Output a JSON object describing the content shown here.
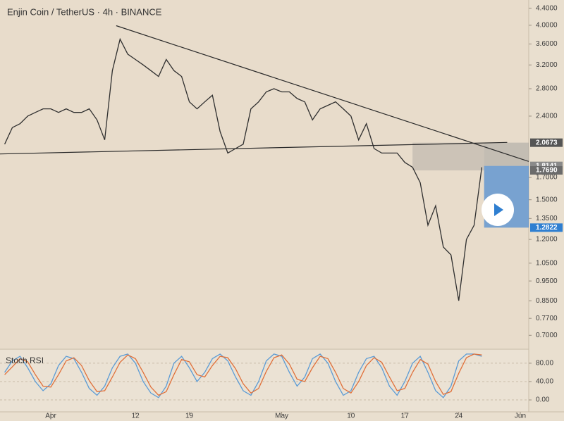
{
  "chart_data": [
    {
      "type": "line",
      "title": "Enjin Coin / TetherUS · 4h · BINANCE",
      "log": true,
      "grid": false,
      "color": "#2f2f2f",
      "x": [
        -6,
        -5,
        -4,
        -3,
        -2,
        -1,
        0,
        1,
        2,
        3,
        4,
        5,
        6,
        7,
        8,
        9,
        10,
        11,
        12,
        13,
        14,
        15,
        16,
        17,
        18,
        19,
        20,
        21,
        22,
        23,
        24,
        25,
        26,
        27,
        28,
        29,
        30,
        31,
        32,
        33,
        34,
        35,
        36,
        37,
        38,
        39,
        40,
        41,
        42,
        43,
        44,
        45,
        46,
        47,
        48,
        49,
        50,
        51,
        52,
        53,
        54,
        55,
        56
      ],
      "values": [
        2.05,
        2.25,
        2.3,
        2.4,
        2.45,
        2.5,
        2.5,
        2.45,
        2.5,
        2.45,
        2.45,
        2.5,
        2.35,
        2.1,
        3.1,
        3.7,
        3.4,
        3.3,
        3.2,
        3.1,
        3.0,
        3.3,
        3.1,
        3.0,
        2.6,
        2.5,
        2.6,
        2.7,
        2.2,
        1.95,
        2.0,
        2.05,
        2.5,
        2.6,
        2.75,
        2.8,
        2.75,
        2.75,
        2.65,
        2.6,
        2.35,
        2.5,
        2.55,
        2.6,
        2.5,
        2.4,
        2.1,
        2.3,
        2.0,
        1.95,
        1.95,
        1.95,
        1.85,
        1.8,
        1.65,
        1.3,
        1.45,
        1.15,
        1.1,
        0.85,
        1.2,
        1.3,
        1.8
      ],
      "xlim": [
        -6.6,
        62.1
      ],
      "xticks": [
        {
          "value": 0,
          "label": "Apr"
        },
        {
          "value": 11,
          "label": "12"
        },
        {
          "value": 18,
          "label": "19"
        },
        {
          "value": 30,
          "label": "May"
        },
        {
          "value": 39,
          "label": "10"
        },
        {
          "value": 46,
          "label": "17"
        },
        {
          "value": 53,
          "label": "24"
        },
        {
          "value": 61,
          "label": "Jun"
        }
      ],
      "ylim": [
        0.65,
        4.61
      ],
      "yticks": [
        {
          "value": 4.4,
          "label": "4.4000"
        },
        {
          "value": 4.0,
          "label": "4.0000"
        },
        {
          "value": 3.6,
          "label": "3.6000"
        },
        {
          "value": 3.2,
          "label": "3.2000"
        },
        {
          "value": 2.8,
          "label": "2.8000"
        },
        {
          "value": 2.4,
          "label": "2.4000"
        },
        {
          "value": 1.7,
          "label": "1.7000"
        },
        {
          "value": 1.5,
          "label": "1.5000"
        },
        {
          "value": 1.35,
          "label": "1.3500"
        },
        {
          "value": 1.2,
          "label": "1.2000"
        },
        {
          "value": 1.05,
          "label": "1.0500"
        },
        {
          "value": 0.95,
          "label": "0.9500"
        },
        {
          "value": 0.85,
          "label": "0.8500"
        },
        {
          "value": 0.77,
          "label": "0.7700"
        },
        {
          "value": 0.7,
          "label": "0.7000"
        }
      ],
      "trendlines": [
        {
          "x": [
            8.5,
            62.1
          ],
          "y": [
            3.99,
            1.86
          ]
        },
        {
          "x": [
            -6.6,
            59.3
          ],
          "y": [
            1.94,
            2.07
          ]
        }
      ],
      "zone": {
        "x": [
          47,
          56.3
        ],
        "y": [
          1.769,
          2.0673
        ]
      },
      "position": {
        "x": [
          56.3,
          62.1
        ],
        "stop": 2.0673,
        "entry": 1.8141,
        "target": 1.2822
      },
      "price_labels": [
        2.0673,
        1.8141,
        {
          "value": 1.769,
          "label": "1.7690"
        },
        1.2822
      ],
      "price_label_colors": [
        "#555555",
        "#8a8a8a",
        "#6b6b6b",
        "#2f7fd1"
      ]
    },
    {
      "type": "line",
      "title": "Stoch RSI",
      "grid": false,
      "x": [
        -6,
        -5,
        -4,
        -3,
        -2,
        -1,
        0,
        1,
        2,
        3,
        4,
        5,
        6,
        7,
        8,
        9,
        10,
        11,
        12,
        13,
        14,
        15,
        16,
        17,
        18,
        19,
        20,
        21,
        22,
        23,
        24,
        25,
        26,
        27,
        28,
        29,
        30,
        31,
        32,
        33,
        34,
        35,
        36,
        37,
        38,
        39,
        40,
        41,
        42,
        43,
        44,
        45,
        46,
        47,
        48,
        49,
        50,
        51,
        52,
        53,
        54,
        55,
        56
      ],
      "series": [
        {
          "color": "#5b9bd5",
          "values": [
            60,
            85,
            95,
            70,
            40,
            20,
            35,
            75,
            95,
            90,
            60,
            25,
            10,
            30,
            70,
            95,
            100,
            80,
            40,
            15,
            5,
            30,
            80,
            95,
            70,
            40,
            60,
            90,
            100,
            85,
            50,
            20,
            10,
            40,
            85,
            100,
            95,
            60,
            30,
            50,
            90,
            100,
            80,
            40,
            10,
            20,
            60,
            90,
            95,
            70,
            30,
            10,
            40,
            80,
            95,
            60,
            20,
            5,
            30,
            85,
            100,
            100,
            95
          ]
        },
        {
          "color": "#e0703a",
          "values": [
            55,
            72,
            90,
            83,
            55,
            30,
            28,
            55,
            85,
            92,
            75,
            42,
            18,
            20,
            50,
            82,
            98,
            90,
            60,
            28,
            10,
            18,
            55,
            88,
            83,
            55,
            50,
            75,
            95,
            92,
            68,
            35,
            15,
            25,
            62,
            92,
            98,
            78,
            45,
            40,
            70,
            95,
            90,
            60,
            25,
            15,
            40,
            75,
            92,
            82,
            50,
            20,
            25,
            60,
            88,
            78,
            40,
            12,
            18,
            58,
            92,
            100,
            98
          ]
        }
      ],
      "xlim": [
        -6.6,
        62.1
      ],
      "ylim": [
        -26,
        109
      ],
      "yticks": [
        {
          "value": 80,
          "label": "80.00"
        },
        {
          "value": 40,
          "label": "40.00"
        },
        {
          "value": 0,
          "label": "0.00"
        }
      ]
    }
  ]
}
